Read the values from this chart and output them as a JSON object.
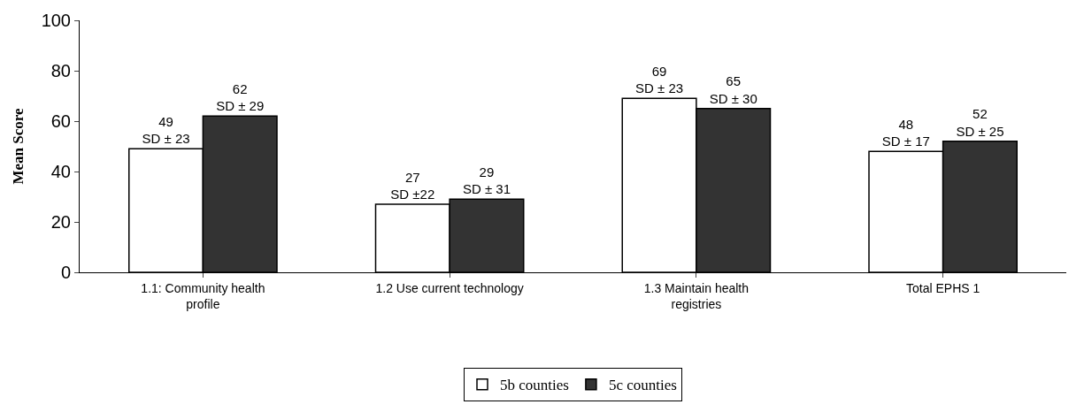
{
  "chart_data": {
    "type": "bar",
    "ylabel": "Mean Score",
    "categories": [
      "1.1: Community health profile",
      "1.2 Use current technology",
      "1.3 Maintain health registries",
      "Total EPHS 1"
    ],
    "series": [
      {
        "name": "5b counties",
        "color": "#ffffff",
        "values": [
          49,
          27,
          69,
          48
        ],
        "value_labels": [
          "49\nSD ± 23",
          "27\nSD ±22",
          "69\nSD ± 23",
          "48\nSD ± 17"
        ]
      },
      {
        "name": "5c counties",
        "color": "#333333",
        "values": [
          62,
          29,
          65,
          52
        ],
        "value_labels": [
          "62\nSD ± 29",
          "29\nSD ± 31",
          "65\nSD ± 30",
          "52\nSD ± 25"
        ]
      }
    ],
    "ylim": [
      0,
      100
    ],
    "yticks": [
      0,
      20,
      40,
      60,
      80,
      100
    ],
    "legend": "bottom"
  }
}
